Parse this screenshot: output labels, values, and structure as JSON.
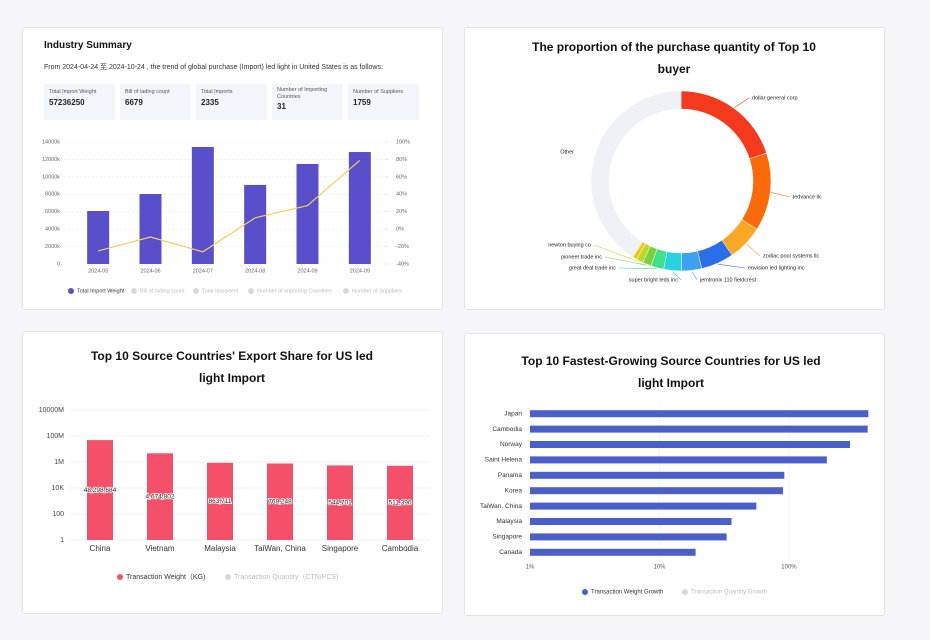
{
  "summary": {
    "title": "Industry Summary",
    "description": "From 2024-04-24 至 2024-10-24 , the trend of global purchase (Import) led light in United States is as follows:",
    "stats": [
      {
        "label": "Total Import Weight",
        "value": 57236250
      },
      {
        "label": "Bill of lading count",
        "value": 6679
      },
      {
        "label": "Total Imports",
        "value": 2335
      },
      {
        "label": "Number of Importing Countries",
        "value": 31
      },
      {
        "label": "Number of Suppliers",
        "value": 1759
      }
    ]
  },
  "chart_data": [
    {
      "type": "combo",
      "categories": [
        "2024-05",
        "2024-06",
        "2024-07",
        "2024-08",
        "2024-09",
        "2024-09"
      ],
      "series": [
        {
          "name": "Total Import Weight",
          "type": "bar",
          "color": "#5a4fcb",
          "values": [
            6080000,
            8030000,
            13430000,
            9070000,
            11480000,
            12850000
          ]
        },
        {
          "type": "line",
          "axis": "y2",
          "color": "#f5cd5e",
          "values": [
            -25,
            -9,
            -26,
            13,
            27,
            79
          ]
        }
      ],
      "legend_inactive": [
        "Bill of lading count",
        "Total Importers",
        "Number of importing Countries",
        "Number of Suppliers"
      ],
      "ylim": [
        0,
        14000000
      ],
      "yticks": [
        0,
        {
          "value": 2000000,
          "label": "2000k"
        },
        {
          "value": 4000000,
          "label": "4000k"
        },
        {
          "value": 6000000,
          "label": "6000k"
        },
        {
          "value": 8000000,
          "label": "8000k"
        },
        {
          "value": 10000000,
          "label": "10000k"
        },
        {
          "value": 12000000,
          "label": "12000k"
        },
        {
          "value": 14000000,
          "label": "14000k"
        }
      ],
      "y2lim": [
        -40,
        100
      ],
      "y2ticks": [
        {
          "value": -40,
          "label": "-40%"
        },
        {
          "value": -20,
          "label": "-20%"
        },
        {
          "value": 0,
          "label": "0%"
        },
        {
          "value": 20,
          "label": "20%"
        },
        {
          "value": 40,
          "label": "40%"
        },
        {
          "value": 60,
          "label": "60%"
        },
        {
          "value": 80,
          "label": "80%"
        },
        {
          "value": 100,
          "label": "100%"
        }
      ],
      "grid": true
    },
    {
      "type": "donut",
      "title": "The proportion of the purchase quantity of Top 10 buyer",
      "categories": [
        "dollar general corp",
        "ledvance llc",
        "zodiac pool systems llc",
        "envision led lighting inc",
        "jemtronix 110 fieldcrest",
        "super bright leds inc",
        "great deal trade inc",
        "pioneer trade inc",
        "newton buying co",
        null,
        "Other"
      ],
      "values": [
        20,
        14,
        6.4,
        5.9,
        3.6,
        3.2,
        2.3,
        1.6,
        1.2,
        0.8,
        41
      ],
      "colors": [
        "#f5391c",
        "#fa6a0a",
        "#f9a825",
        "#2a6ee8",
        "#3ea0f0",
        "#2ad1e0",
        "#3ee08a",
        "#7ad13a",
        "#b8d82c",
        "#f2c718",
        "#eef1f5"
      ]
    },
    {
      "type": "logbar",
      "title": "Top 10 Source Countries' Export Share for US led light Import",
      "categories": [
        "China",
        "Vietnam",
        "Malaysia",
        "TaiWan, China",
        "Singapore",
        "Cambodia"
      ],
      "series": [
        {
          "name": "Transaction Weight（KG)",
          "color": "#f5506a",
          "values": [
            48298684,
            4674802,
            863711,
            769248,
            544701,
            511390
          ],
          "value_labels": [
            "48,298,684",
            "4,674,802",
            "863,711",
            "769,248",
            "544,701",
            "511,390"
          ]
        }
      ],
      "legend_inactive": [
        "Transaction Quantity（CTN/PCS)"
      ],
      "log": true,
      "ylim": [
        1,
        10000000000
      ],
      "yticks": [
        1,
        100,
        {
          "value": 10000,
          "label": "10K"
        },
        {
          "value": 1000000,
          "label": "1M"
        },
        {
          "value": 100000000,
          "label": "100M"
        },
        {
          "value": 10000000000,
          "label": "10000M"
        }
      ],
      "grid": true
    },
    {
      "type": "loghbar",
      "title": "Top 10 Fastest-Growing Source Countries for US led light Import",
      "categories": [
        "Japan",
        "Cambodia",
        "Norway",
        "Saint Helena",
        "Panama",
        "Korea",
        "TaiWan, China",
        "Malaysia",
        "Singapore",
        "Canada"
      ],
      "series": [
        {
          "name": "Transaction Weight Growth",
          "color": "#4a5fc8",
          "values": [
            410,
            405,
            296,
            196,
            92,
            90,
            56,
            36,
            33,
            19
          ]
        }
      ],
      "legend_inactive": [
        "Transaction Quantity Growth"
      ],
      "log": true,
      "xlim": [
        1,
        500
      ],
      "xticks": [
        {
          "value": 1,
          "label": "1%"
        },
        {
          "value": 10,
          "label": "10%"
        },
        {
          "value": 100,
          "label": "100%"
        }
      ],
      "grid": true
    }
  ]
}
